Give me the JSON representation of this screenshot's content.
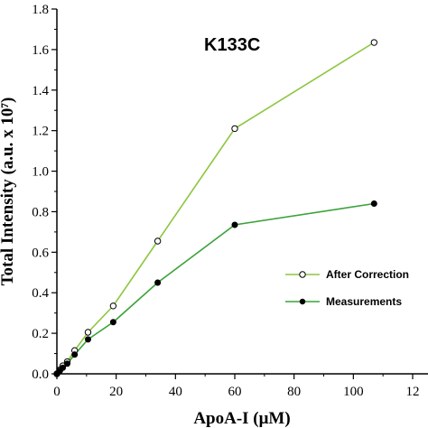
{
  "chart_data": {
    "type": "line",
    "title": "K133C",
    "xlabel": "ApoA-I (μM)",
    "ylabel": "Total Intensity (a.u. x 10⁷)",
    "xlim": [
      0,
      120
    ],
    "ylim": [
      0,
      1.8
    ],
    "x_ticks": [
      "0",
      "20",
      "40",
      "60",
      "80",
      "100",
      "12"
    ],
    "y_ticks": [
      "0.0",
      "0.2",
      "0.4",
      "0.6",
      "0.8",
      "1.0",
      "1.2",
      "1.4",
      "1.6",
      "1.8"
    ],
    "legend_position": "lower-right",
    "series": [
      {
        "name": "After Correction",
        "marker": "open-circle",
        "color": "#8dc63f",
        "x": [
          0,
          1,
          2,
          3.5,
          6,
          10.5,
          19,
          34,
          60,
          107
        ],
        "y": [
          0,
          0.02,
          0.04,
          0.06,
          0.115,
          0.205,
          0.335,
          0.655,
          1.21,
          1.635
        ]
      },
      {
        "name": "Measurements",
        "marker": "filled-circle",
        "color": "#3aa33a",
        "x": [
          0,
          1,
          2,
          3.5,
          6,
          10.5,
          19,
          34,
          60,
          107
        ],
        "y": [
          0,
          0.015,
          0.03,
          0.05,
          0.095,
          0.17,
          0.255,
          0.45,
          0.735,
          0.84
        ]
      }
    ]
  }
}
